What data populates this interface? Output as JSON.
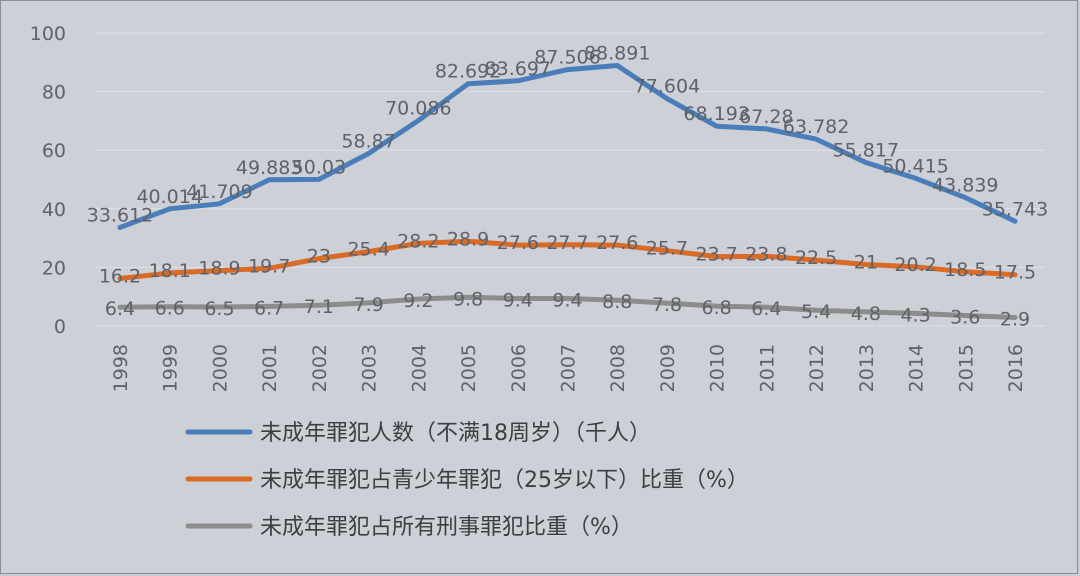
{
  "chart_data": {
    "type": "line",
    "x": [
      "1998",
      "1999",
      "2000",
      "2001",
      "2002",
      "2003",
      "2004",
      "2005",
      "2006",
      "2007",
      "2008",
      "2009",
      "2010",
      "2011",
      "2012",
      "2013",
      "2014",
      "2015",
      "2016"
    ],
    "ylim": [
      0,
      100
    ],
    "yticks": [
      "0",
      "20",
      "40",
      "60",
      "80",
      "100"
    ],
    "grid": true,
    "legend_position": "bottom",
    "series": [
      {
        "name": "未成年罪犯人数（不满18周岁）（千人）",
        "color": "#4a7ebb",
        "values": [
          33.612,
          40.014,
          41.709,
          49.883,
          50.03,
          58.87,
          70.086,
          82.692,
          83.697,
          87.506,
          88.891,
          77.604,
          68.193,
          67.28,
          63.782,
          55.817,
          50.415,
          43.839,
          35.743
        ],
        "labels": [
          "33.612",
          "40.014",
          "41.709",
          "49.883",
          "50.03",
          "58.87",
          "70.086",
          "82.692",
          "83.697",
          "87.506",
          "88.891",
          "77.604",
          "68.193",
          "67.28",
          "63.782",
          "55.817",
          "50.415",
          "43.839",
          "35.743"
        ]
      },
      {
        "name": "未成年罪犯占青少年罪犯（25岁以下）比重（%）",
        "color": "#d96b27",
        "values": [
          16.2,
          18.1,
          18.9,
          19.7,
          23,
          25.4,
          28.2,
          28.9,
          27.6,
          27.7,
          27.6,
          25.7,
          23.7,
          23.8,
          22.5,
          21,
          20.2,
          18.5,
          17.5
        ],
        "labels": [
          "16.2",
          "18.1",
          "18.9",
          "19.7",
          "23",
          "25.4",
          "28.2",
          "28.9",
          "27.6",
          "27.7",
          "27.6",
          "25.7",
          "23.7",
          "23.8",
          "22.5",
          "21",
          "20.2",
          "18.5",
          "17.5"
        ]
      },
      {
        "name": "未成年罪犯占所有刑事罪犯比重（%）",
        "color": "#8c8c8c",
        "values": [
          6.4,
          6.6,
          6.5,
          6.7,
          7.1,
          7.9,
          9.2,
          9.8,
          9.4,
          9.4,
          8.8,
          7.8,
          6.8,
          6.4,
          5.4,
          4.8,
          4.3,
          3.6,
          2.9
        ],
        "labels": [
          "6.4",
          "6.6",
          "6.5",
          "6.7",
          "7.1",
          "7.9",
          "9.2",
          "9.8",
          "9.4",
          "9.4",
          "8.8",
          "7.8",
          "6.8",
          "6.4",
          "5.4",
          "4.8",
          "4.3",
          "3.6",
          "2.9"
        ]
      }
    ]
  }
}
